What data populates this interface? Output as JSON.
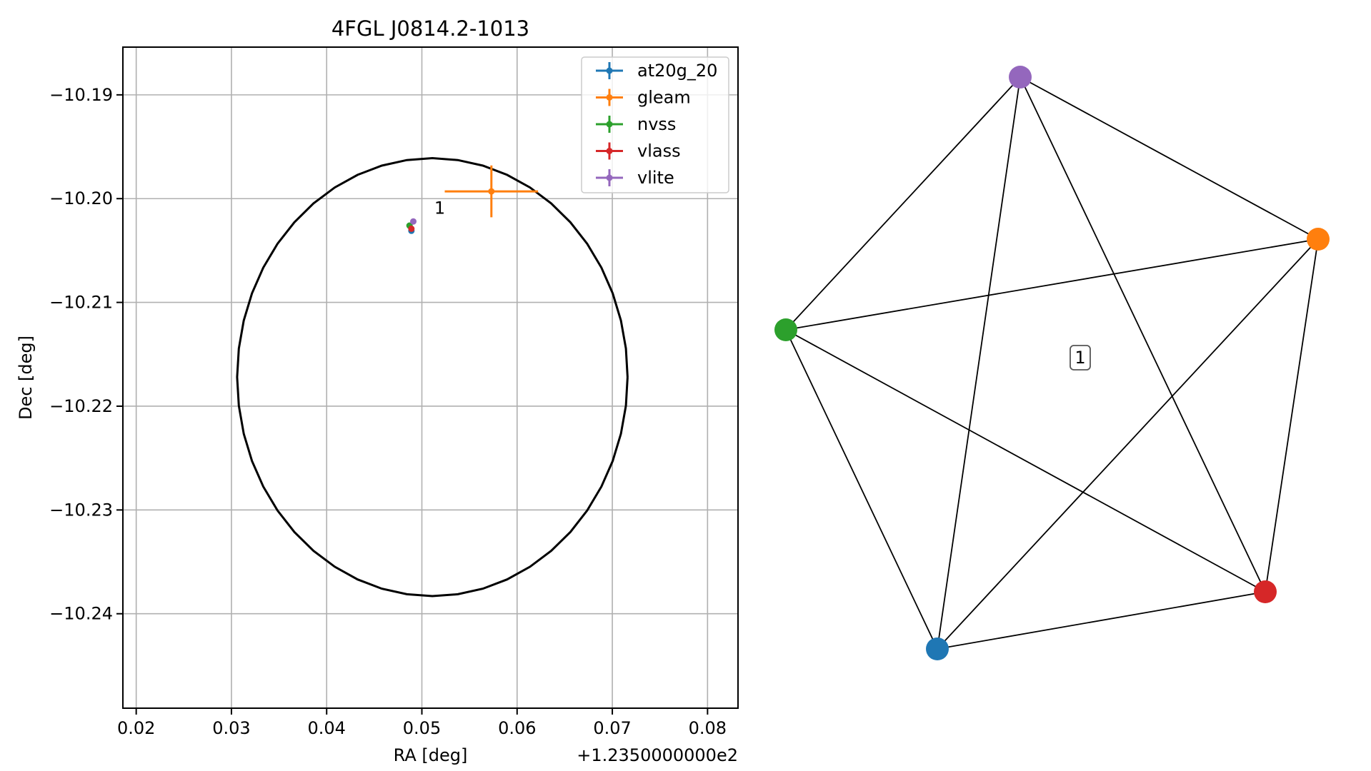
{
  "chart_data": [
    {
      "type": "scatter",
      "title": "4FGL J0814.2-1013",
      "xlabel": "RA [deg]",
      "ylabel": "Dec [deg]",
      "x_offset_label": "+1.2350000000e2",
      "xlim": [
        0.0186,
        0.0832
      ],
      "ylim": [
        -10.2491,
        -10.1854
      ],
      "x_ticks": [
        0.02,
        0.03,
        0.04,
        0.05,
        0.06,
        0.07,
        0.08
      ],
      "x_tick_labels": [
        "0.02",
        "0.03",
        "0.04",
        "0.05",
        "0.06",
        "0.07",
        "0.08"
      ],
      "y_ticks": [
        -10.19,
        -10.2,
        -10.21,
        -10.22,
        -10.23,
        -10.24
      ],
      "y_tick_labels": [
        "−10.19",
        "−10.20",
        "−10.21",
        "−10.22",
        "−10.23",
        "−10.24"
      ],
      "grid": true,
      "legend_position": "top-right",
      "series": [
        {
          "name": "at20g_20",
          "color": "#1f77b4",
          "x": 0.0489,
          "y": -10.2031,
          "xerr": 0.0001,
          "yerr": 0.0001
        },
        {
          "name": "gleam",
          "color": "#ff7f0e",
          "x": 0.0573,
          "y": -10.1993,
          "xerr": 0.0049,
          "yerr": 0.0025
        },
        {
          "name": "nvss",
          "color": "#2ca02c",
          "x": 0.0487,
          "y": -10.2026,
          "xerr": 0.0001,
          "yerr": 0.0001
        },
        {
          "name": "vlass",
          "color": "#d62728",
          "x": 0.0489,
          "y": -10.2029,
          "xerr": 0.0001,
          "yerr": 0.0001
        },
        {
          "name": "vlite",
          "color": "#9467bd",
          "x": 0.0491,
          "y": -10.2022,
          "xerr": 0.0001,
          "yerr": 0.0001
        }
      ],
      "ellipse": {
        "center_x": 0.0511,
        "center_y": -10.2172,
        "semi_x": 0.0205,
        "semi_y": 0.0211,
        "color": "#000000"
      },
      "annotations": [
        {
          "text": "1",
          "x": 0.0513,
          "y": -10.2009
        }
      ]
    },
    {
      "type": "network",
      "nodes": [
        {
          "id": "at20g_20",
          "color": "#1f77b4"
        },
        {
          "id": "gleam",
          "color": "#ff7f0e"
        },
        {
          "id": "nvss",
          "color": "#2ca02c"
        },
        {
          "id": "vlass",
          "color": "#d62728"
        },
        {
          "id": "vlite",
          "color": "#9467bd"
        }
      ],
      "edges": [
        [
          "vlite",
          "gleam"
        ],
        [
          "vlite",
          "nvss"
        ],
        [
          "vlite",
          "at20g_20"
        ],
        [
          "vlite",
          "vlass"
        ],
        [
          "gleam",
          "nvss"
        ],
        [
          "gleam",
          "at20g_20"
        ],
        [
          "gleam",
          "vlass"
        ],
        [
          "nvss",
          "at20g_20"
        ],
        [
          "nvss",
          "vlass"
        ],
        [
          "at20g_20",
          "vlass"
        ]
      ],
      "cluster_label": "1"
    }
  ]
}
